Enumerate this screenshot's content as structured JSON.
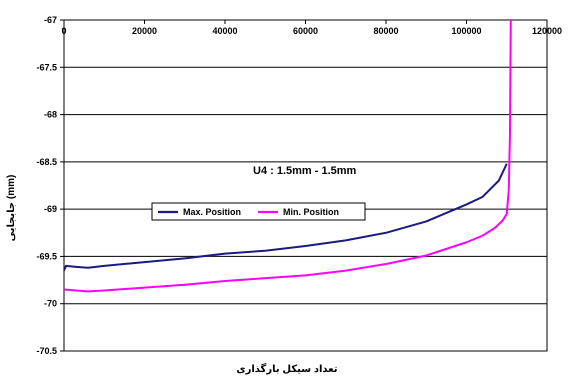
{
  "chart_data": {
    "type": "line",
    "annotation": "U4 : 1.5mm - 1.5mm",
    "xlabel": "تعداد سیکل بارگذاری",
    "ylabel": "(mm)   جابجایی",
    "xlim": [
      0,
      120000
    ],
    "ylim": [
      -70.5,
      -67
    ],
    "x_ticks": [
      "0",
      "20000",
      "40000",
      "60000",
      "80000",
      "100000",
      "120000"
    ],
    "y_ticks": [
      "-67",
      "-67.5",
      "-68",
      "-68.5",
      "-69",
      "-69.5",
      "-70",
      "-70.5"
    ],
    "grid": true,
    "legend_position": "center-left",
    "series": [
      {
        "name": "Max. Position",
        "color": "#1a1a80",
        "points": [
          [
            0,
            -69.65
          ],
          [
            500,
            -69.6
          ],
          [
            3000,
            -69.61
          ],
          [
            6000,
            -69.62
          ],
          [
            10000,
            -69.6
          ],
          [
            20000,
            -69.56
          ],
          [
            30000,
            -69.52
          ],
          [
            40000,
            -69.47
          ],
          [
            50000,
            -69.44
          ],
          [
            60000,
            -69.39
          ],
          [
            70000,
            -69.33
          ],
          [
            80000,
            -69.25
          ],
          [
            90000,
            -69.13
          ],
          [
            100000,
            -68.95
          ],
          [
            104000,
            -68.87
          ],
          [
            108000,
            -68.7
          ],
          [
            110000,
            -68.52
          ]
        ]
      },
      {
        "name": "Min. Position",
        "color": "#ff00ff",
        "points": [
          [
            0,
            -69.85
          ],
          [
            3000,
            -69.86
          ],
          [
            6000,
            -69.87
          ],
          [
            10000,
            -69.86
          ],
          [
            20000,
            -69.83
          ],
          [
            30000,
            -69.8
          ],
          [
            40000,
            -69.76
          ],
          [
            50000,
            -69.73
          ],
          [
            60000,
            -69.7
          ],
          [
            70000,
            -69.65
          ],
          [
            80000,
            -69.58
          ],
          [
            90000,
            -69.49
          ],
          [
            100000,
            -69.35
          ],
          [
            104000,
            -69.28
          ],
          [
            107000,
            -69.2
          ],
          [
            109000,
            -69.12
          ],
          [
            110000,
            -69.05
          ],
          [
            110500,
            -68.8
          ],
          [
            110800,
            -68.2
          ],
          [
            111000,
            -67
          ]
        ]
      }
    ]
  }
}
